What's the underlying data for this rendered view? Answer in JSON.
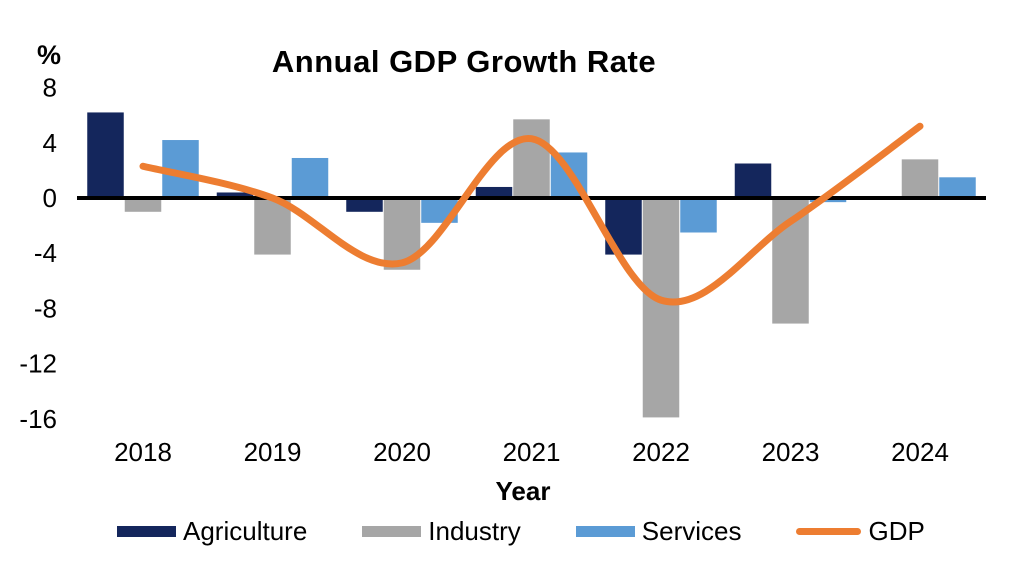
{
  "chart_data": {
    "type": "bar",
    "subtype": "combo-bar-line",
    "title": "Annual GDP Growth Rate",
    "xlabel": "Year",
    "ylabel": "%",
    "categories": [
      "2018",
      "2019",
      "2020",
      "2021",
      "2022",
      "2023",
      "2024"
    ],
    "series": [
      {
        "name": "Agriculture",
        "render": "bar",
        "color": "#14265C",
        "values": [
          6.2,
          0.4,
          -1.0,
          0.8,
          -4.1,
          2.5,
          0
        ]
      },
      {
        "name": "Industry",
        "render": "bar",
        "color": "#A6A6A6",
        "values": [
          -1.0,
          -4.1,
          -5.2,
          5.7,
          -15.9,
          -9.1,
          2.8
        ]
      },
      {
        "name": "Services",
        "render": "bar",
        "color": "#5B9BD5",
        "values": [
          4.2,
          2.9,
          -1.8,
          3.3,
          -2.5,
          -0.3,
          1.5
        ]
      },
      {
        "name": "GDP",
        "render": "line",
        "color": "#ED7D31",
        "values": [
          2.3,
          0.0,
          -4.7,
          4.3,
          -7.4,
          -1.7,
          5.2
        ]
      }
    ],
    "yticks": [
      8,
      4,
      0,
      -4,
      -8,
      -12,
      -16
    ],
    "ylim": [
      -16,
      8
    ],
    "grid": false,
    "axis_line_color": "#000000",
    "text_color": "#000000",
    "legend_position": "bottom"
  }
}
